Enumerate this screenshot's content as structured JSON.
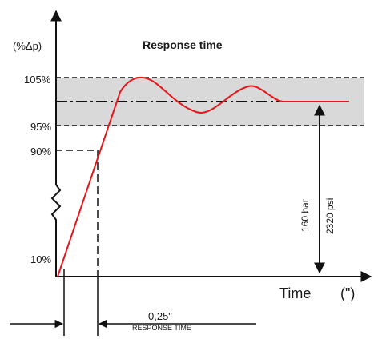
{
  "title": "Response time",
  "y_axis_label": "(%Δp)",
  "x_axis_label": "Time",
  "x_axis_unit": "(\")",
  "ticks": {
    "t105": "105%",
    "t95": "95%",
    "t90": "90%",
    "t10": "10%"
  },
  "response_value": "0,25\"",
  "response_label": "RESPONSE TIME",
  "pressure_bar": "160 bar",
  "pressure_psi": "2320 psi",
  "colors": {
    "curve": "#e8161b",
    "band": "#d9d9d9",
    "ink": "#111111"
  }
}
